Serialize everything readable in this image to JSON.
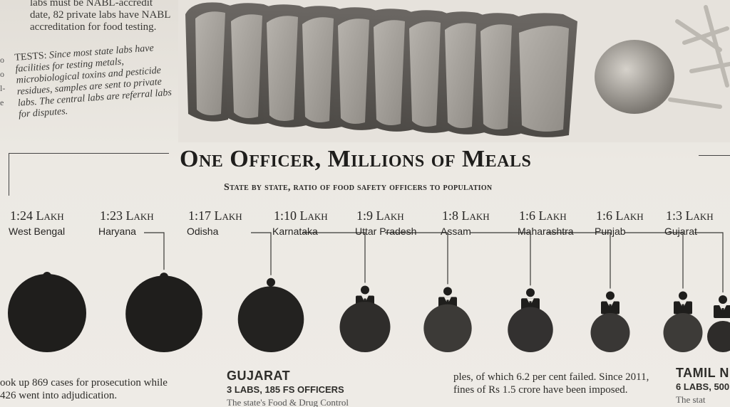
{
  "intro": {
    "lead_line1": "labs must be NABL-accredit",
    "lead_line2": "date, 82 private labs have NABL",
    "lead_line3": "accreditation for food testing.",
    "tests_label": "TESTS:",
    "tests_text": "Since most state labs have facilities for testing metals, microbiological toxins and pesticide residues, samples are sent to private labs. The central labs are referral labs for disputes.",
    "edge_chars": [
      "o",
      "o",
      "l-",
      "e"
    ]
  },
  "headline": "One Officer, Millions of Meals",
  "subhead": "State by state, ratio of food safety officers to population",
  "chart_data": {
    "type": "bubble",
    "title": "One Officer, Millions of Meals",
    "subtitle": "State by state, ratio of food safety officers to population",
    "categories": [
      "West Bengal",
      "Haryana",
      "Odisha",
      "Karnataka",
      "Uttar Pradesh",
      "Assam",
      "Maharashtra",
      "Punjab",
      "Gujarat"
    ],
    "labels": [
      "1:24 Lakh",
      "1:23 Lakh",
      "1:17 Lakh",
      "1:10 Lakh",
      "1:9 Lakh",
      "1:8 Lakh",
      "1:6 Lakh",
      "1:6 Lakh",
      "1:3 Lakh"
    ],
    "values": [
      24,
      23,
      17,
      10,
      9,
      8,
      6,
      6,
      3
    ],
    "unit": "Lakh",
    "colors": [
      "#1f1e1c",
      "#1f1e1c",
      "#232220",
      "#2f2d2b",
      "#3c3a37",
      "#333130",
      "#393735",
      "#3d3b38",
      "#2e2c2a"
    ]
  },
  "bottom": {
    "col1_line1": "ook up 869 cases for prosecution while",
    "col1_line2": "426 went into adjudication.",
    "col2_title": "GUJARAT",
    "col2_sub": "3 LABS, 185 FS OFFICERS",
    "col2_cut": "The state's Food & Drug Control",
    "col3_line1": "ples, of which 6.2 per cent failed. Since 2011,",
    "col3_line2": "fines of Rs 1.5 crore have been imposed.",
    "col4_title": "TAMIL N",
    "col4_sub": "6 LABS, 500",
    "col4_cut": "The stat"
  }
}
